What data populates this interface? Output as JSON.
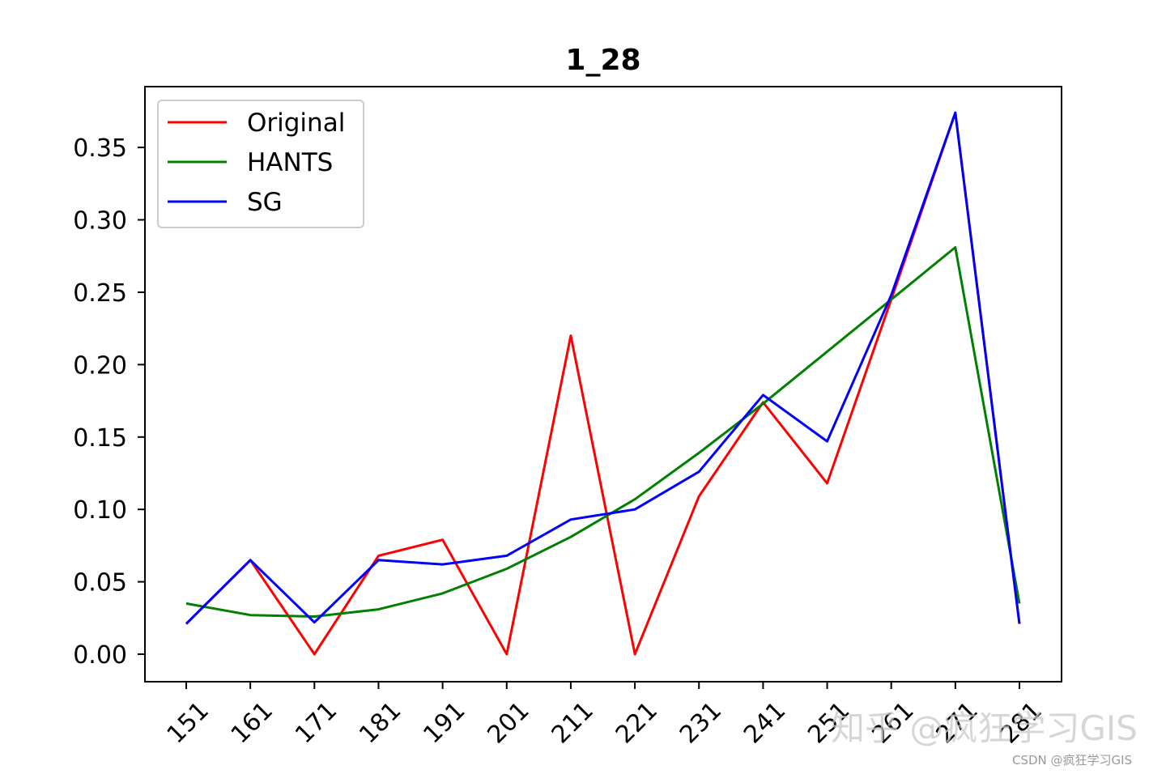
{
  "chart_data": {
    "type": "line",
    "title": "1_28",
    "xlabel": "",
    "ylabel": "",
    "x": [
      151,
      161,
      171,
      181,
      191,
      201,
      211,
      221,
      231,
      241,
      251,
      261,
      271,
      281
    ],
    "x_tick_labels": [
      "151",
      "161",
      "171",
      "181",
      "191",
      "201",
      "211",
      "221",
      "231",
      "241",
      "251",
      "261",
      "271",
      "281"
    ],
    "ylim": [
      -0.019,
      0.392
    ],
    "y_ticks": [
      0.0,
      0.05,
      0.1,
      0.15,
      0.2,
      0.25,
      0.3,
      0.35
    ],
    "y_tick_labels": [
      "0.00",
      "0.05",
      "0.10",
      "0.15",
      "0.20",
      "0.25",
      "0.30",
      "0.35"
    ],
    "legend_position": "top-left",
    "grid": false,
    "series": [
      {
        "name": "Original",
        "color": "#ff0000",
        "values": [
          0.021,
          0.065,
          0.0,
          0.068,
          0.079,
          0.0,
          0.22,
          0.0,
          0.109,
          0.174,
          0.118,
          0.245,
          0.374,
          0.021
        ]
      },
      {
        "name": "HANTS",
        "color": "#008000",
        "values": [
          0.035,
          0.027,
          0.026,
          0.031,
          0.042,
          0.059,
          0.081,
          0.107,
          0.139,
          0.173,
          0.209,
          0.245,
          0.281,
          0.035
        ]
      },
      {
        "name": "SG",
        "color": "#0000ff",
        "values": [
          0.021,
          0.065,
          0.022,
          0.065,
          0.062,
          0.068,
          0.093,
          0.1,
          0.126,
          0.179,
          0.147,
          0.248,
          0.374,
          0.021
        ]
      }
    ]
  },
  "watermark": {
    "main": "知乎 @疯狂学习GIS",
    "footer": "CSDN @疯狂学习GIS"
  }
}
